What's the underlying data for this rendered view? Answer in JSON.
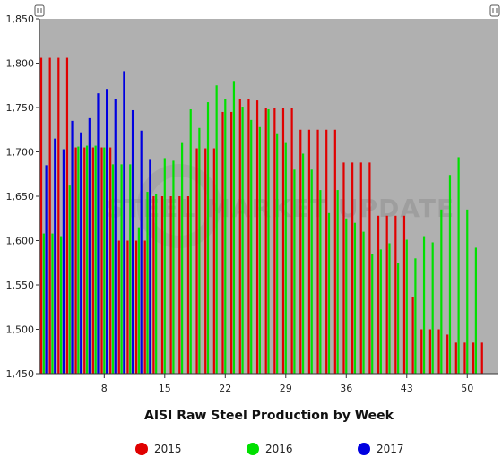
{
  "chart_data": {
    "type": "bar",
    "title": "",
    "xlabel": "AISI Raw Steel Production by Week",
    "ylabel": "",
    "ylim": [
      1450,
      1850
    ],
    "yticks": [
      1450,
      1500,
      1550,
      1600,
      1650,
      1700,
      1750,
      1800,
      1850
    ],
    "ytick_labels": [
      "1,450",
      "1,500",
      "1,550",
      "1,600",
      "1,650",
      "1,700",
      "1,750",
      "1,800",
      "1,850"
    ],
    "xticks": [
      8,
      15,
      22,
      29,
      36,
      43,
      50
    ],
    "x": [
      1,
      2,
      3,
      4,
      5,
      6,
      7,
      8,
      9,
      10,
      11,
      12,
      13,
      14,
      15,
      16,
      17,
      18,
      19,
      20,
      21,
      22,
      23,
      24,
      25,
      26,
      27,
      28,
      29,
      30,
      31,
      32,
      33,
      34,
      35,
      36,
      37,
      38,
      39,
      40,
      41,
      42,
      43,
      44,
      45,
      46,
      47,
      48,
      49,
      50,
      51,
      52,
      53
    ],
    "grid": false,
    "legend_position": "bottom",
    "watermark": "STEEL MARKET UPDATE",
    "series": [
      {
        "name": "2015",
        "color": "#e00000",
        "values": [
          1806,
          1806,
          1806,
          1806,
          1705,
          1705,
          1705,
          1705,
          1705,
          1600,
          1600,
          1600,
          1600,
          1650,
          1650,
          1650,
          1650,
          1650,
          1704,
          1704,
          1704,
          1745,
          1745,
          1760,
          1760,
          1758,
          1750,
          1750,
          1750,
          1750,
          1725,
          1725,
          1725,
          1725,
          1725,
          1688,
          1688,
          1688,
          1688,
          1628,
          1628,
          1628,
          1628,
          1536,
          1500,
          1500,
          1500,
          1494,
          1485,
          1485,
          1485,
          1485,
          null
        ]
      },
      {
        "name": "2016",
        "color": "#00e000",
        "values": [
          1608,
          1608,
          1605,
          1662,
          1706,
          1707,
          1707,
          1705,
          1686,
          1686,
          1686,
          1615,
          1655,
          1653,
          1693,
          1690,
          1710,
          1748,
          1727,
          1756,
          1775,
          1760,
          1780,
          1751,
          1736,
          1728,
          1748,
          1721,
          1710,
          1680,
          1698,
          1680,
          1657,
          1631,
          1657,
          1625,
          1620,
          1610,
          1585,
          1590,
          1597,
          1575,
          1601,
          1580,
          1605,
          1598,
          1635,
          1674,
          1694,
          1635,
          1592,
          null,
          null
        ]
      },
      {
        "name": "2017",
        "color": "#0000e0",
        "values": [
          1685,
          1715,
          1703,
          1735,
          1722,
          1738,
          1766,
          1771,
          1760,
          1791,
          1747,
          1724,
          1692,
          null,
          null,
          null,
          null,
          null,
          null,
          null,
          null,
          null,
          null,
          null,
          null,
          null,
          null,
          null,
          null,
          null,
          null,
          null,
          null,
          null,
          null,
          null,
          null,
          null,
          null,
          null,
          null,
          null,
          null,
          null,
          null,
          null,
          null,
          null,
          null,
          null,
          null,
          null,
          null
        ]
      }
    ]
  }
}
